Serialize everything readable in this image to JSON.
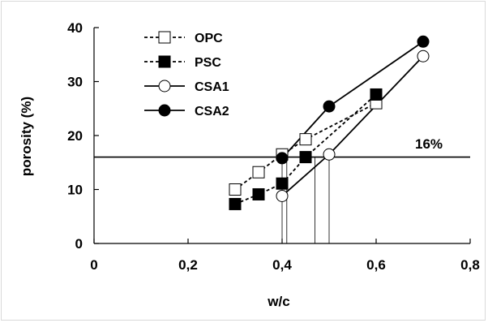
{
  "chart_data": {
    "type": "line",
    "title": "",
    "xlabel": "w/c",
    "ylabel": "porosity (%)",
    "xlim": [
      0,
      0.8
    ],
    "ylim": [
      0,
      40
    ],
    "xticks": [
      "0",
      "0,2",
      "0,4",
      "0,6",
      "0,8"
    ],
    "yticks": [
      "0",
      "10",
      "20",
      "30",
      "40"
    ],
    "grid": false,
    "legend_position": "top-left",
    "series": [
      {
        "name": "OPC",
        "marker": "open-square",
        "line": "dashed",
        "x": [
          0.3,
          0.35,
          0.4,
          0.45,
          0.6
        ],
        "y": [
          10.0,
          13.2,
          16.5,
          19.3,
          26.0
        ]
      },
      {
        "name": "PSC",
        "marker": "filled-square",
        "line": "dashed",
        "x": [
          0.3,
          0.35,
          0.4,
          0.45,
          0.6
        ],
        "y": [
          7.3,
          9.1,
          11.1,
          16.0,
          27.6
        ]
      },
      {
        "name": "CSA1",
        "marker": "open-circle",
        "line": "solid",
        "x": [
          0.4,
          0.5,
          0.7
        ],
        "y": [
          8.8,
          16.5,
          34.7
        ]
      },
      {
        "name": "CSA2",
        "marker": "filled-circle",
        "line": "solid",
        "x": [
          0.4,
          0.5,
          0.7
        ],
        "y": [
          15.8,
          25.4,
          37.4
        ]
      }
    ],
    "reference_line": {
      "y": 16,
      "label": "16%"
    },
    "drop_lines_x": [
      0.4,
      0.41,
      0.47,
      0.5
    ]
  }
}
